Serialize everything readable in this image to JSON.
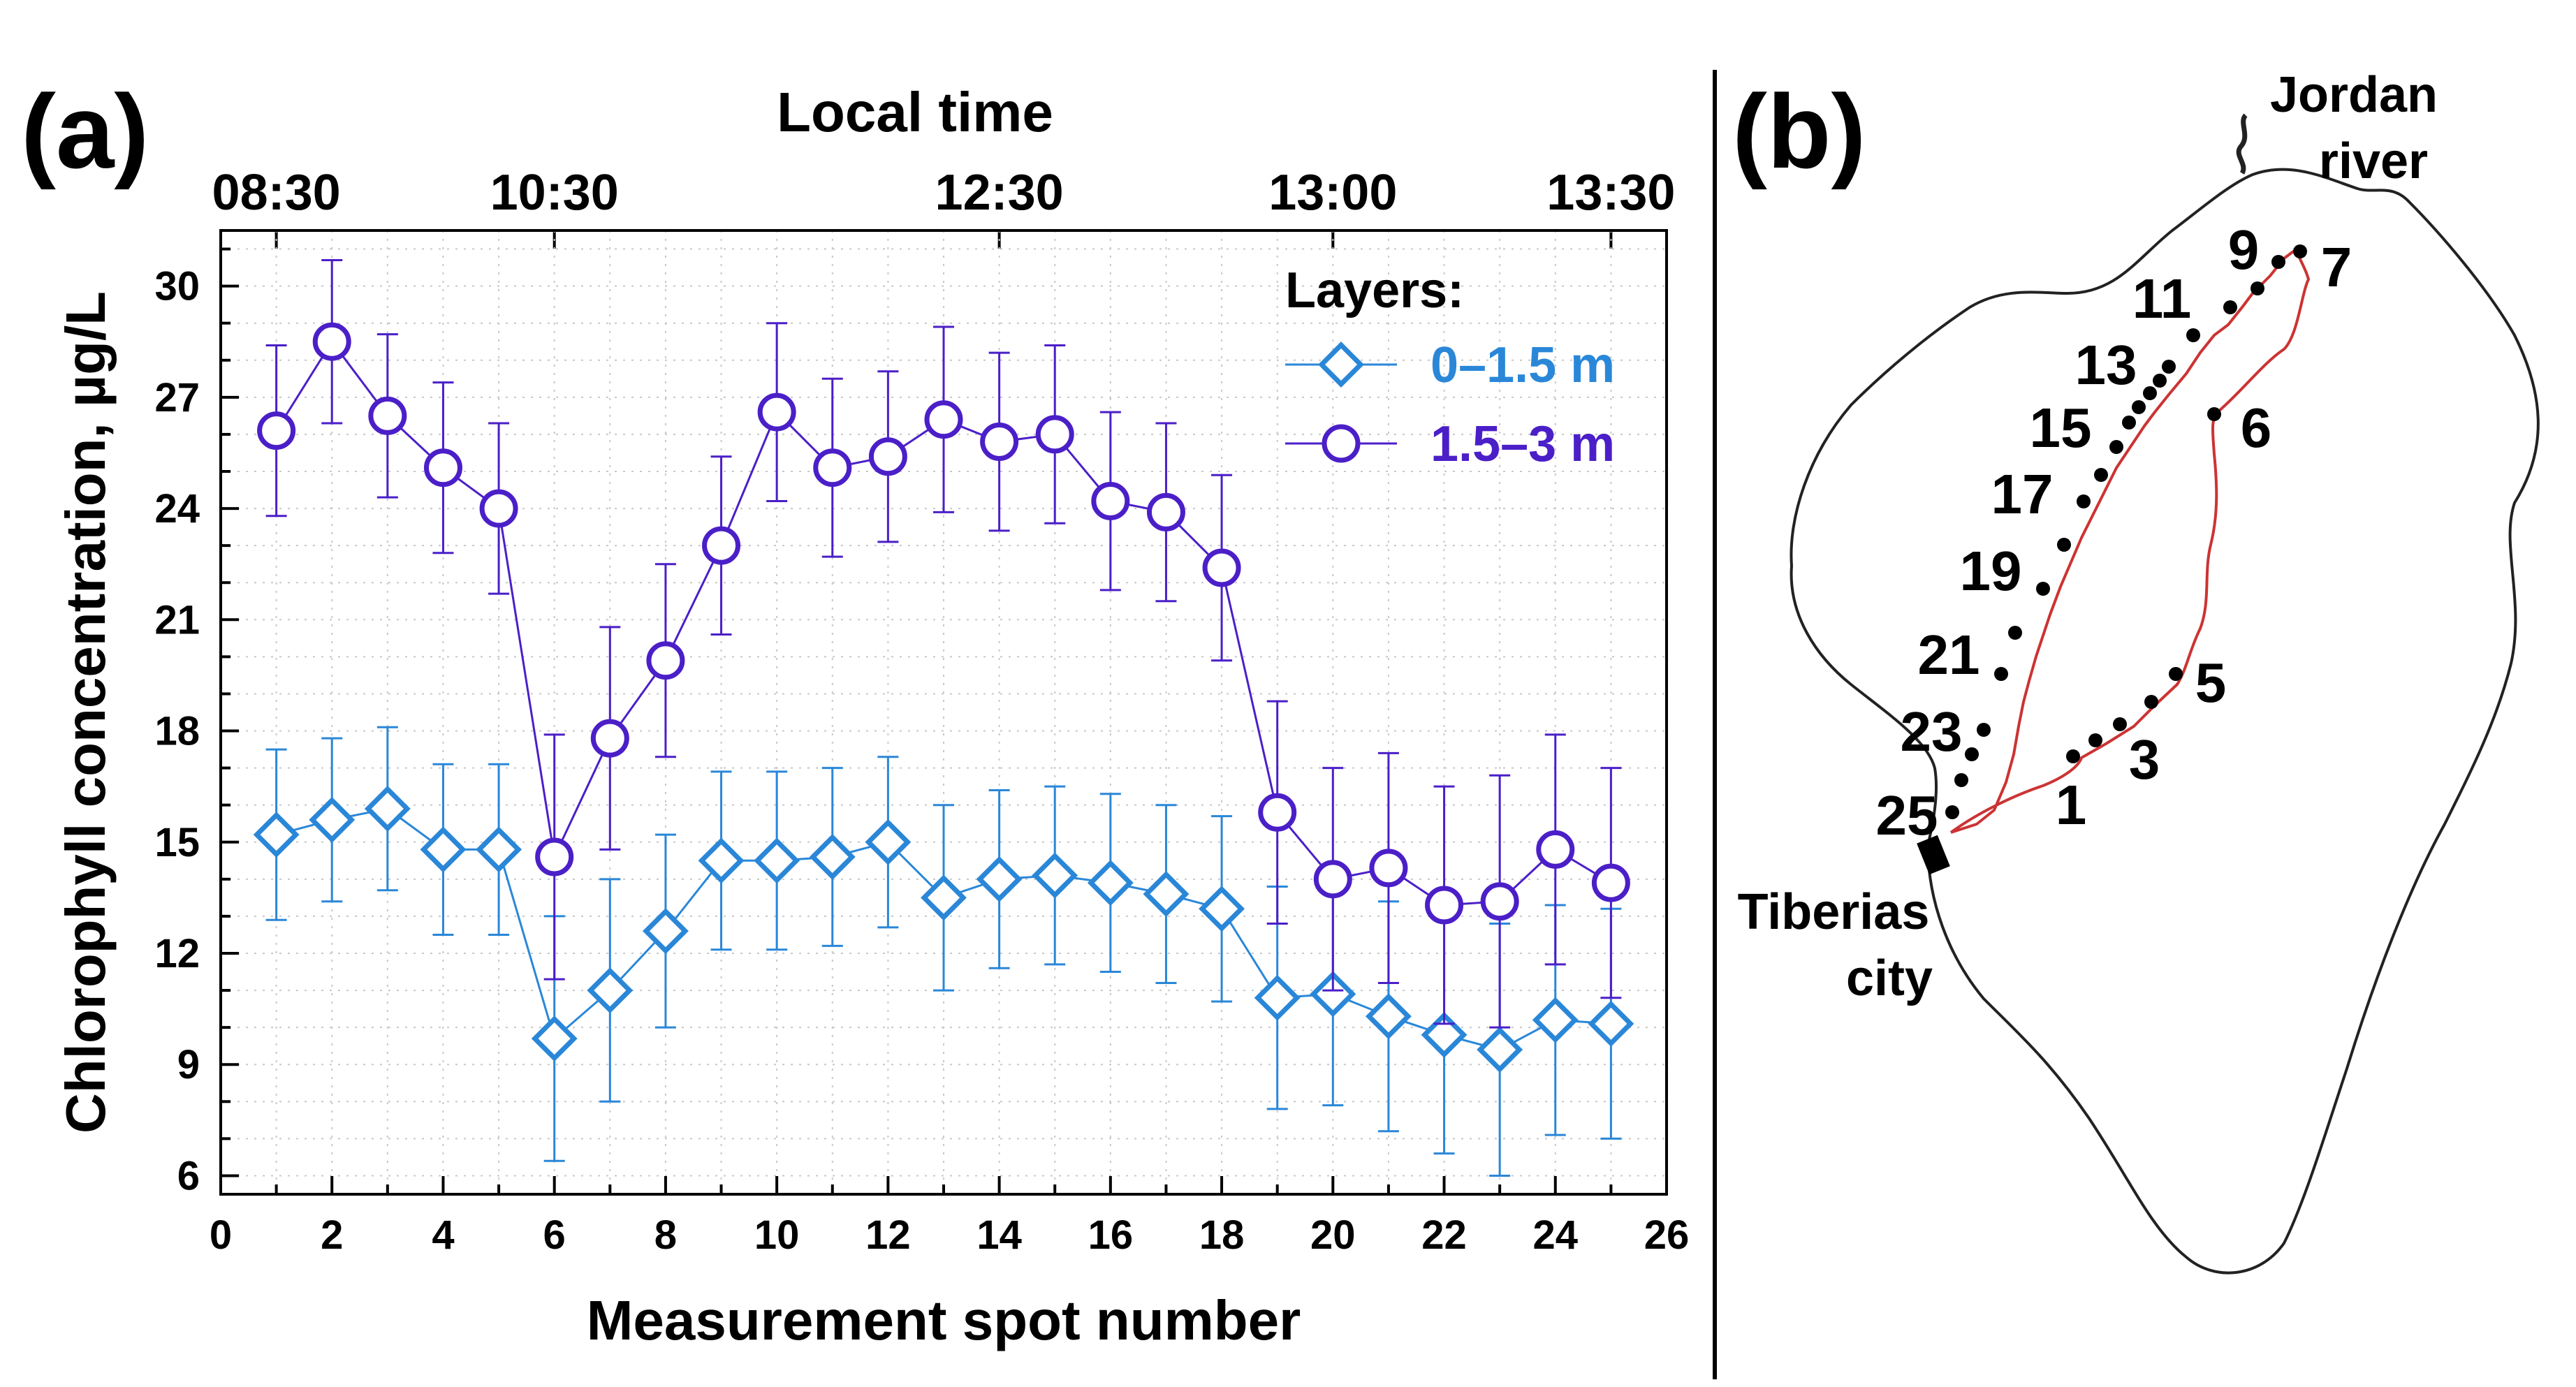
{
  "panel_a_label": "(a)",
  "panel_b_label": "(b)",
  "chart_data": {
    "type": "line",
    "title": "",
    "xlabel": "Measurement spot number",
    "ylabel": "Chlorophyll concentration, µg/L",
    "top_axis_label": "Local time",
    "xlim": [
      0,
      26
    ],
    "ylim": [
      5.5,
      31.5
    ],
    "xticks": [
      0,
      2,
      4,
      6,
      8,
      10,
      12,
      14,
      16,
      18,
      20,
      22,
      24,
      26
    ],
    "yticks": [
      6,
      9,
      12,
      15,
      18,
      21,
      24,
      27,
      30
    ],
    "top_ticks": [
      {
        "x": 1,
        "label": "08:30"
      },
      {
        "x": 6,
        "label": "10:30"
      },
      {
        "x": 14,
        "label": "12:30"
      },
      {
        "x": 20,
        "label": "13:00"
      },
      {
        "x": 25,
        "label": "13:30"
      }
    ],
    "legend_title": "Layers:",
    "x": [
      1,
      2,
      3,
      4,
      5,
      6,
      7,
      8,
      9,
      10,
      11,
      12,
      13,
      14,
      15,
      16,
      17,
      18,
      19,
      20,
      21,
      22,
      23,
      24,
      25
    ],
    "series": [
      {
        "name": "0–1.5 m",
        "marker": "diamond",
        "color": "#2a87d8",
        "values": [
          15.2,
          15.6,
          15.9,
          14.8,
          14.8,
          9.7,
          11.0,
          12.6,
          14.5,
          14.5,
          14.6,
          15.0,
          13.5,
          14.0,
          14.1,
          13.9,
          13.6,
          13.2,
          10.8,
          10.9,
          10.3,
          9.8,
          9.4,
          10.2,
          10.1
        ],
        "err": [
          2.3,
          2.2,
          2.2,
          2.3,
          2.3,
          3.3,
          3.0,
          2.6,
          2.4,
          2.4,
          2.4,
          2.3,
          2.5,
          2.4,
          2.4,
          2.4,
          2.4,
          2.5,
          3.0,
          3.0,
          3.1,
          3.2,
          3.4,
          3.1,
          3.1
        ]
      },
      {
        "name": "1.5–3 m",
        "marker": "circle",
        "color": "#4b1fc8",
        "values": [
          26.1,
          28.5,
          26.5,
          25.1,
          24.0,
          14.6,
          17.8,
          19.9,
          23.0,
          26.6,
          25.1,
          25.4,
          26.4,
          25.8,
          26.0,
          24.2,
          23.9,
          22.4,
          15.8,
          14.0,
          14.3,
          13.3,
          13.4,
          14.8,
          13.9
        ],
        "err": [
          2.3,
          2.2,
          2.2,
          2.3,
          2.3,
          3.3,
          3.0,
          2.6,
          2.4,
          2.4,
          2.4,
          2.3,
          2.5,
          2.4,
          2.4,
          2.4,
          2.4,
          2.5,
          3.0,
          3.0,
          3.1,
          3.2,
          3.4,
          3.1,
          3.1
        ]
      }
    ]
  },
  "map": {
    "river_label_1": "Jordan",
    "river_label_2": "river",
    "city_label_1": "Tiberias",
    "city_label_2": "city",
    "spot_labels": [
      "1",
      "3",
      "5",
      "6",
      "7",
      "9",
      "11",
      "13",
      "15",
      "17",
      "19",
      "21",
      "23",
      "25"
    ],
    "route_color": "#cc3333"
  }
}
